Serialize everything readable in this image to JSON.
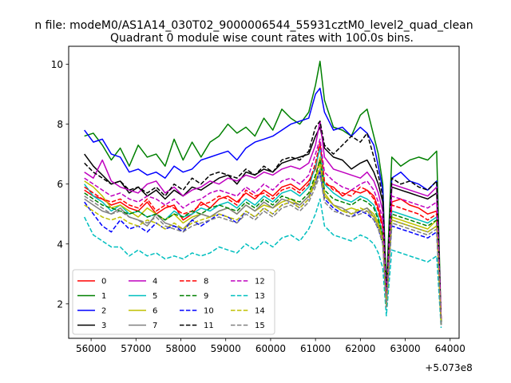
{
  "chart_data": {
    "type": "line",
    "suptitle": "n file: modeM0/AS1A14_030T02_9000006544_55931cztM0_level2_quad_clean",
    "title": "Quadrant 0 module wise count rates with 100.0s bins.",
    "xlabel": "",
    "ylabel": "",
    "x_offset_label": "+5.073e8",
    "xlim": [
      55500,
      64200
    ],
    "ylim": [
      0.85,
      10.6
    ],
    "x_ticks": [
      {
        "value": 56000,
        "label": "56000"
      },
      {
        "value": 57000,
        "label": "57000"
      },
      {
        "value": 58000,
        "label": "58000"
      },
      {
        "value": 59000,
        "label": "59000"
      },
      {
        "value": 60000,
        "label": "60000"
      },
      {
        "value": 61000,
        "label": "61000"
      },
      {
        "value": 62000,
        "label": "62000"
      },
      {
        "value": 63000,
        "label": "63000"
      },
      {
        "value": 64000,
        "label": "64000"
      }
    ],
    "y_ticks": [
      {
        "value": 2,
        "label": "2"
      },
      {
        "value": 4,
        "label": "4"
      },
      {
        "value": 6,
        "label": "6"
      },
      {
        "value": 8,
        "label": "8"
      },
      {
        "value": 10,
        "label": "10"
      }
    ],
    "grid": false,
    "legend_placement": "lower-left",
    "x": [
      55850,
      56050,
      56250,
      56450,
      56650,
      56850,
      57050,
      57250,
      57450,
      57650,
      57850,
      58050,
      58250,
      58450,
      58650,
      58850,
      59050,
      59250,
      59450,
      59650,
      59850,
      60050,
      60250,
      60450,
      60650,
      60850,
      61000,
      61100,
      61200,
      61400,
      61600,
      61800,
      62000,
      62150,
      62300,
      62400,
      62500,
      62580,
      62700,
      62900,
      63100,
      63300,
      63500,
      63700,
      63800
    ],
    "series": [
      {
        "name": "0",
        "color": "#ff0000",
        "dash": "solid",
        "values": [
          5.8,
          5.6,
          5.5,
          5.3,
          5.4,
          5.2,
          5.1,
          5.4,
          5.0,
          5.2,
          5.3,
          4.8,
          5.0,
          5.4,
          5.2,
          5.5,
          5.6,
          5.4,
          5.7,
          5.5,
          5.8,
          5.6,
          5.9,
          6.0,
          5.8,
          6.1,
          6.5,
          7.3,
          6.0,
          5.9,
          5.6,
          5.8,
          5.7,
          5.8,
          5.6,
          5.2,
          4.6,
          2.2,
          5.4,
          5.5,
          5.3,
          5.2,
          5.0,
          5.1,
          1.5
        ]
      },
      {
        "name": "1",
        "color": "#008000",
        "dash": "solid",
        "values": [
          7.6,
          7.7,
          7.3,
          6.8,
          7.2,
          6.6,
          7.3,
          6.9,
          7.0,
          6.6,
          7.5,
          6.8,
          7.4,
          6.9,
          7.4,
          7.6,
          8.0,
          7.7,
          7.9,
          7.6,
          8.2,
          7.8,
          8.5,
          8.2,
          8.0,
          8.4,
          9.3,
          10.1,
          8.8,
          7.9,
          7.8,
          7.6,
          8.3,
          8.5,
          7.6,
          7.0,
          6.0,
          2.5,
          6.9,
          6.6,
          6.8,
          6.9,
          6.8,
          7.1,
          1.4
        ]
      },
      {
        "name": "2",
        "color": "#0000ff",
        "dash": "solid",
        "values": [
          7.8,
          7.4,
          7.5,
          7.0,
          6.9,
          6.4,
          6.5,
          6.3,
          6.4,
          6.2,
          6.6,
          6.4,
          6.5,
          6.8,
          6.9,
          7.0,
          7.1,
          6.8,
          7.2,
          7.4,
          7.5,
          7.6,
          7.8,
          8.0,
          8.1,
          8.2,
          9.0,
          9.2,
          8.4,
          7.8,
          7.9,
          7.6,
          7.9,
          7.7,
          7.3,
          6.6,
          5.8,
          2.0,
          6.2,
          6.4,
          6.1,
          6.0,
          5.8,
          6.1,
          1.3
        ]
      },
      {
        "name": "3",
        "color": "#000000",
        "dash": "solid",
        "values": [
          7.0,
          6.6,
          6.3,
          6.0,
          6.1,
          5.7,
          5.9,
          5.6,
          5.8,
          5.5,
          5.8,
          5.6,
          5.9,
          5.8,
          6.0,
          6.2,
          6.3,
          6.0,
          6.4,
          6.3,
          6.5,
          6.4,
          6.7,
          6.8,
          6.9,
          7.0,
          7.6,
          7.9,
          7.2,
          6.9,
          6.8,
          6.5,
          6.7,
          6.8,
          6.4,
          6.0,
          5.4,
          2.1,
          5.9,
          5.8,
          5.7,
          5.6,
          5.5,
          5.7,
          1.4
        ]
      },
      {
        "name": "4",
        "color": "#bf00bf",
        "dash": "solid",
        "values": [
          6.4,
          6.2,
          6.8,
          6.1,
          5.9,
          5.8,
          5.7,
          6.0,
          6.1,
          5.7,
          5.9,
          5.6,
          5.8,
          5.9,
          6.1,
          6.0,
          6.2,
          6.1,
          6.3,
          6.2,
          6.4,
          6.3,
          6.5,
          6.6,
          6.5,
          6.7,
          7.3,
          8.1,
          6.9,
          6.5,
          6.4,
          6.3,
          6.2,
          6.4,
          6.1,
          5.7,
          5.1,
          2.2,
          6.0,
          5.9,
          5.8,
          5.7,
          5.6,
          5.9,
          1.5
        ]
      },
      {
        "name": "5",
        "color": "#00bfbf",
        "dash": "solid",
        "values": [
          6.0,
          5.6,
          5.4,
          5.1,
          5.3,
          5.0,
          5.1,
          4.9,
          5.0,
          4.8,
          5.1,
          4.9,
          5.0,
          5.2,
          5.1,
          5.3,
          5.4,
          5.2,
          5.5,
          5.3,
          5.6,
          5.4,
          5.7,
          5.8,
          5.6,
          5.9,
          6.6,
          7.2,
          6.0,
          5.7,
          5.5,
          5.4,
          5.6,
          5.5,
          5.3,
          4.9,
          4.3,
          1.9,
          5.1,
          5.0,
          4.9,
          4.8,
          4.7,
          4.9,
          1.3
        ]
      },
      {
        "name": "6",
        "color": "#bfbf00",
        "dash": "solid",
        "values": [
          6.1,
          5.9,
          5.6,
          5.2,
          5.3,
          5.1,
          4.9,
          5.2,
          5.0,
          4.8,
          5.0,
          4.7,
          4.9,
          5.0,
          4.9,
          5.1,
          5.2,
          5.0,
          5.3,
          5.1,
          5.3,
          5.2,
          5.4,
          5.5,
          5.3,
          5.6,
          6.2,
          6.9,
          5.7,
          5.3,
          5.1,
          5.2,
          5.1,
          5.2,
          5.0,
          4.7,
          4.2,
          2.0,
          4.9,
          4.8,
          4.7,
          4.6,
          4.5,
          4.8,
          1.4
        ]
      },
      {
        "name": "7",
        "color": "#808080",
        "dash": "solid",
        "values": [
          5.5,
          5.3,
          5.1,
          5.0,
          5.2,
          4.9,
          4.8,
          4.6,
          5.0,
          4.7,
          4.6,
          4.5,
          4.8,
          5.0,
          4.9,
          5.1,
          5.2,
          5.0,
          5.3,
          5.1,
          5.4,
          5.2,
          5.5,
          5.4,
          5.3,
          5.6,
          6.0,
          6.5,
          5.6,
          5.3,
          5.2,
          5.0,
          5.1,
          5.2,
          4.9,
          4.6,
          4.1,
          2.0,
          4.8,
          4.7,
          4.6,
          4.5,
          4.4,
          4.6,
          1.3
        ]
      },
      {
        "name": "8",
        "color": "#ff0000",
        "dash": "dashed",
        "values": [
          5.9,
          5.7,
          5.5,
          5.4,
          5.5,
          5.3,
          5.2,
          5.5,
          5.1,
          5.3,
          5.2,
          5.0,
          5.1,
          5.3,
          5.4,
          5.6,
          5.5,
          5.3,
          5.8,
          5.6,
          5.7,
          5.5,
          5.8,
          5.9,
          5.7,
          6.0,
          6.7,
          7.4,
          6.1,
          5.8,
          5.7,
          5.6,
          5.9,
          5.8,
          5.5,
          5.1,
          4.5,
          2.1,
          5.3,
          5.2,
          5.1,
          5.0,
          4.8,
          5.0,
          1.5
        ]
      },
      {
        "name": "9",
        "color": "#008000",
        "dash": "dashed",
        "values": [
          5.7,
          5.5,
          5.3,
          5.2,
          5.1,
          5.0,
          5.1,
          4.9,
          5.0,
          4.8,
          5.0,
          4.9,
          5.1,
          5.0,
          5.2,
          5.3,
          5.2,
          5.1,
          5.4,
          5.2,
          5.5,
          5.3,
          5.6,
          5.5,
          5.4,
          5.7,
          6.3,
          6.8,
          5.8,
          5.5,
          5.4,
          5.3,
          5.5,
          5.4,
          5.2,
          4.8,
          4.3,
          2.0,
          5.0,
          4.9,
          4.8,
          4.7,
          4.6,
          4.8,
          1.4
        ]
      },
      {
        "name": "10",
        "color": "#0000ff",
        "dash": "dashed",
        "values": [
          5.4,
          5.0,
          4.6,
          4.4,
          4.8,
          4.5,
          4.6,
          4.4,
          4.7,
          4.5,
          4.6,
          4.4,
          4.8,
          4.6,
          4.8,
          5.0,
          4.9,
          4.7,
          5.1,
          4.9,
          5.2,
          5.0,
          5.3,
          5.4,
          5.2,
          5.5,
          6.1,
          6.4,
          5.5,
          5.2,
          5.0,
          4.9,
          5.1,
          5.0,
          4.8,
          4.5,
          4.0,
          1.9,
          4.6,
          4.5,
          4.4,
          4.3,
          4.2,
          4.4,
          1.3
        ]
      },
      {
        "name": "11",
        "color": "#000000",
        "dash": "dashed",
        "values": [
          6.7,
          6.4,
          6.2,
          6.0,
          6.1,
          5.8,
          5.9,
          5.7,
          5.9,
          5.6,
          6.0,
          5.8,
          6.2,
          6.0,
          6.3,
          6.4,
          6.3,
          6.2,
          6.5,
          6.3,
          6.6,
          6.4,
          6.8,
          6.9,
          6.8,
          7.1,
          7.9,
          8.1,
          7.3,
          7.0,
          7.3,
          7.6,
          7.4,
          7.7,
          6.9,
          6.3,
          5.6,
          2.2,
          6.2,
          6.0,
          6.1,
          5.9,
          5.8,
          6.1,
          1.4
        ]
      },
      {
        "name": "12",
        "color": "#bf00bf",
        "dash": "dashed",
        "values": [
          6.2,
          6.0,
          5.8,
          5.6,
          5.7,
          5.5,
          5.4,
          5.6,
          5.5,
          5.3,
          5.5,
          5.2,
          5.4,
          5.5,
          5.7,
          5.8,
          5.7,
          5.6,
          5.9,
          5.7,
          6.0,
          5.8,
          6.1,
          6.2,
          6.0,
          6.3,
          7.0,
          7.5,
          6.4,
          6.1,
          5.9,
          5.8,
          6.0,
          6.1,
          5.8,
          5.4,
          4.8,
          2.1,
          5.6,
          5.5,
          5.4,
          5.3,
          5.2,
          5.4,
          1.5
        ]
      },
      {
        "name": "13",
        "color": "#00bfbf",
        "dash": "dashed",
        "values": [
          4.9,
          4.3,
          4.1,
          3.9,
          3.9,
          3.6,
          3.8,
          3.6,
          3.7,
          3.5,
          3.6,
          3.5,
          3.7,
          3.6,
          3.7,
          3.9,
          3.8,
          3.7,
          4.0,
          3.8,
          4.1,
          3.9,
          4.2,
          4.3,
          4.1,
          4.5,
          5.0,
          5.5,
          4.6,
          4.3,
          4.2,
          4.1,
          4.3,
          4.2,
          4.0,
          3.7,
          3.2,
          1.6,
          3.8,
          3.7,
          3.6,
          3.5,
          3.4,
          3.6,
          1.2
        ]
      },
      {
        "name": "14",
        "color": "#bfbf00",
        "dash": "dashed",
        "values": [
          5.3,
          5.1,
          4.9,
          4.8,
          4.9,
          4.7,
          4.6,
          4.8,
          4.7,
          4.5,
          4.7,
          4.5,
          4.7,
          4.8,
          4.9,
          5.0,
          4.9,
          4.8,
          5.1,
          4.9,
          5.2,
          5.0,
          5.3,
          5.4,
          5.2,
          5.5,
          6.1,
          6.7,
          5.6,
          5.3,
          5.1,
          5.0,
          5.2,
          5.1,
          4.9,
          4.6,
          4.1,
          1.9,
          4.8,
          4.7,
          4.6,
          4.5,
          4.4,
          4.6,
          1.3
        ]
      },
      {
        "name": "15",
        "color": "#808080",
        "dash": "dashed",
        "values": [
          5.6,
          5.4,
          5.2,
          5.0,
          5.1,
          4.9,
          4.8,
          4.7,
          4.9,
          4.6,
          4.5,
          4.4,
          4.6,
          4.7,
          4.8,
          4.9,
          4.8,
          4.7,
          5.0,
          4.8,
          5.1,
          4.9,
          5.2,
          5.3,
          5.1,
          5.4,
          5.9,
          6.3,
          5.4,
          5.1,
          5.0,
          4.9,
          5.0,
          5.1,
          4.8,
          4.5,
          4.0,
          1.9,
          4.7,
          4.6,
          4.5,
          4.4,
          4.3,
          4.5,
          1.3
        ]
      }
    ]
  }
}
